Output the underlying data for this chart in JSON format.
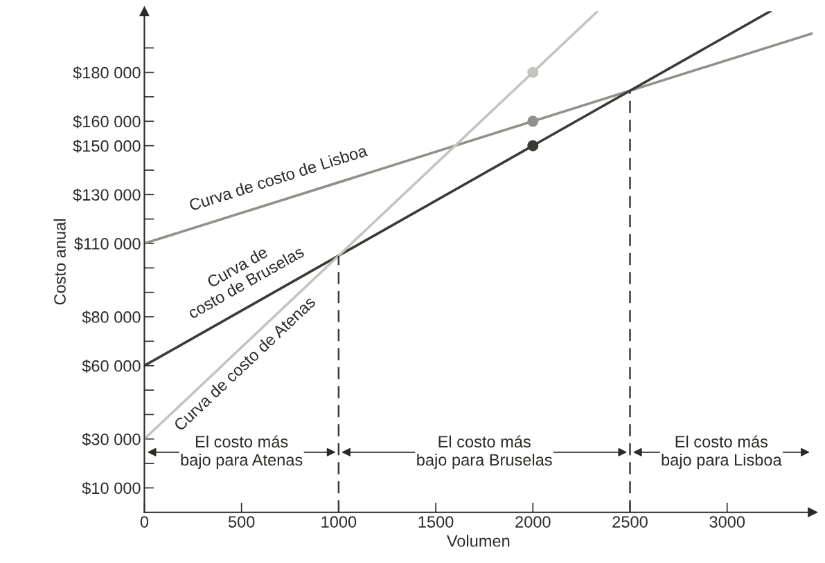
{
  "chart_data": {
    "type": "line",
    "ylabel": "Costo anual",
    "xlabel": "Volumen",
    "xlim": [
      0,
      3440
    ],
    "ylim": [
      0,
      205000
    ],
    "xticks": [
      0,
      500,
      1000,
      1500,
      2000,
      2500,
      3000
    ],
    "yticks": [
      {
        "value": 10000,
        "label": "$10 000"
      },
      {
        "value": 20000,
        "label": null
      },
      {
        "value": 30000,
        "label": "$30 000"
      },
      {
        "value": 40000,
        "label": null
      },
      {
        "value": 50000,
        "label": null
      },
      {
        "value": 60000,
        "label": "$60 000"
      },
      {
        "value": 70000,
        "label": null
      },
      {
        "value": 80000,
        "label": "$80 000"
      },
      {
        "value": 90000,
        "label": null
      },
      {
        "value": 100000,
        "label": null
      },
      {
        "value": 110000,
        "label": "$110 000"
      },
      {
        "value": 120000,
        "label": null
      },
      {
        "value": 130000,
        "label": "$130 000"
      },
      {
        "value": 140000,
        "label": null
      },
      {
        "value": 150000,
        "label": "$150 000"
      },
      {
        "value": 160000,
        "label": "$160 000"
      },
      {
        "value": 170000,
        "label": null
      },
      {
        "value": 180000,
        "label": "$180 000"
      },
      {
        "value": 190000,
        "label": null
      }
    ],
    "grid": false,
    "series": [
      {
        "name": "Curva de costo de Lisboa",
        "color": "#8f918a",
        "x": [
          0,
          3440
        ],
        "values": [
          110000,
          196000
        ]
      },
      {
        "name": "Curva de\ncosto de Bruselas",
        "color": "#3a3a36",
        "x": [
          0,
          3222
        ],
        "values": [
          60000,
          205000
        ]
      },
      {
        "name": "Curva de costo de Atenas",
        "color": "#c2c5bd",
        "x": [
          0,
          2333
        ],
        "values": [
          30000,
          205000
        ]
      },
      {
        "type": "scatter",
        "color": "#8f918a",
        "x": [
          2000
        ],
        "values": [
          160000
        ]
      },
      {
        "type": "scatter",
        "color": "#3a3a36",
        "x": [
          2000
        ],
        "values": [
          150000
        ]
      },
      {
        "type": "scatter",
        "color": "#c2c5bd",
        "x": [
          2000
        ],
        "values": [
          180000
        ]
      }
    ],
    "ref_lines": [
      {
        "axis": "x",
        "value": 1000,
        "line_style": "dashed",
        "color": "#3a3a36"
      },
      {
        "axis": "x",
        "value": 2500,
        "line_style": "dashed",
        "color": "#3a3a36"
      }
    ],
    "annotations": [
      "El costo más\nbajo para Atenas",
      "El costo más\nbajo para Bruselas",
      "El costo más\nbajo para Lisboa"
    ]
  }
}
